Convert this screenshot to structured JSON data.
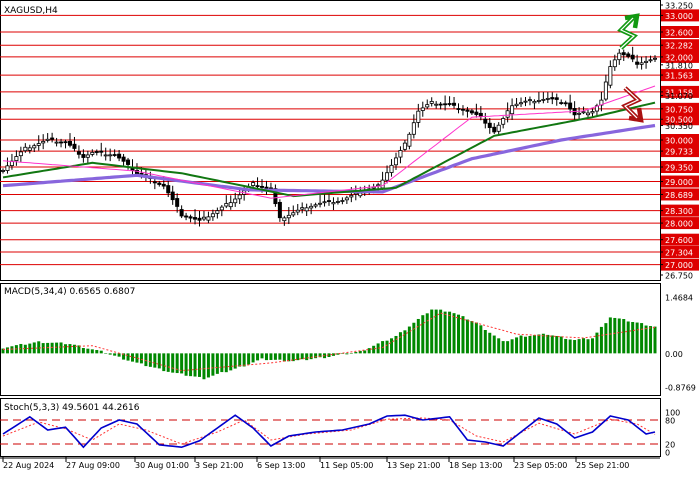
{
  "window": {
    "title": "XAGUSD,H4"
  },
  "colors": {
    "bull": "#ffffff",
    "bear": "#000000",
    "frame": "#000000",
    "hline": "#dd0000",
    "label_bg": "#dd0000",
    "label_fg": "#ffffff",
    "ma_fast": "#ff33cc",
    "ma_mid": "#117711",
    "ma_slow": "#8866dd",
    "macd_hist": "#008800",
    "macd_signal": "#ff3333",
    "stoch_main": "#0000cc",
    "stoch_signal": "#ff3333",
    "arrow_up": "#119911",
    "arrow_down": "#aa1111"
  },
  "icons": {
    "up": "green-zigzag-up-arrow-icon",
    "down": "red-zigzag-down-arrow-icon"
  },
  "chart_data": [
    {
      "type": "candlestick",
      "title": "XAGUSD,H4",
      "ylim": [
        26.75,
        33.25
      ],
      "price_labels": [
        "33.250",
        "33.000",
        "32.600",
        "32.282",
        "32.000",
        "31.810",
        "31.563",
        "31.158",
        "31.070",
        "30.750",
        "30.500",
        "30.350",
        "30.000",
        "29.733",
        "29.350",
        "29.000",
        "28.689",
        "28.300",
        "28.000",
        "27.600",
        "27.304",
        "27.000",
        "26.750"
      ],
      "highlighted_levels": [
        33.0,
        32.6,
        32.282,
        32.0,
        31.563,
        31.158,
        30.75,
        30.5,
        30.0,
        29.733,
        29.35,
        29.0,
        28.689,
        28.3,
        28.0,
        27.6,
        27.304,
        27.0
      ],
      "x_labels": [
        "22 Aug 2024",
        "27 Aug 09:00",
        "30 Aug 01:00",
        "3 Sep 21:00",
        "6 Sep 13:00",
        "11 Sep 05:00",
        "13 Sep 21:00",
        "18 Sep 13:00",
        "23 Sep 05:00",
        "25 Sep 21:00"
      ],
      "key_points": [
        [
          0,
          29.3
        ],
        [
          5,
          29.8
        ],
        [
          10,
          30.0
        ],
        [
          14,
          29.95
        ],
        [
          18,
          29.6
        ],
        [
          20,
          29.7
        ],
        [
          25,
          29.65
        ],
        [
          30,
          29.2
        ],
        [
          36,
          28.9
        ],
        [
          40,
          28.2
        ],
        [
          44,
          28.05
        ],
        [
          48,
          28.3
        ],
        [
          52,
          28.6
        ],
        [
          56,
          28.95
        ],
        [
          60,
          28.8
        ],
        [
          62,
          28.1
        ],
        [
          64,
          28.2
        ],
        [
          68,
          28.4
        ],
        [
          72,
          28.5
        ],
        [
          76,
          28.55
        ],
        [
          80,
          28.75
        ],
        [
          84,
          28.9
        ],
        [
          87,
          29.4
        ],
        [
          90,
          29.9
        ],
        [
          93,
          30.7
        ],
        [
          96,
          30.9
        ],
        [
          100,
          30.85
        ],
        [
          104,
          30.7
        ],
        [
          107,
          30.55
        ],
        [
          110,
          30.2
        ],
        [
          112,
          30.5
        ],
        [
          114,
          30.85
        ],
        [
          118,
          30.95
        ],
        [
          122,
          31.0
        ],
        [
          126,
          30.9
        ],
        [
          128,
          30.6
        ],
        [
          130,
          30.65
        ],
        [
          132,
          30.7
        ],
        [
          134,
          30.95
        ],
        [
          136,
          31.8
        ],
        [
          138,
          32.1
        ],
        [
          140,
          32.0
        ],
        [
          142,
          31.85
        ],
        [
          144,
          31.9
        ],
        [
          146,
          31.95
        ]
      ],
      "series": [
        {
          "values": [
            [
              0,
              29.5
            ],
            [
              30,
              29.25
            ],
            [
              60,
              28.6
            ],
            [
              85,
              28.9
            ],
            [
              105,
              30.55
            ],
            [
              130,
              30.7
            ],
            [
              146,
              31.3
            ]
          ]
        },
        {
          "values": [
            [
              0,
              29.1
            ],
            [
              20,
              29.45
            ],
            [
              40,
              29.2
            ],
            [
              65,
              28.65
            ],
            [
              88,
              28.85
            ],
            [
              110,
              30.1
            ],
            [
              132,
              30.55
            ],
            [
              146,
              30.9
            ]
          ]
        },
        {
          "values": [
            [
              0,
              28.9
            ],
            [
              30,
              29.15
            ],
            [
              55,
              28.8
            ],
            [
              85,
              28.75
            ],
            [
              105,
              29.55
            ],
            [
              125,
              30.0
            ],
            [
              146,
              30.35
            ]
          ]
        }
      ]
    },
    {
      "type": "bar",
      "title": "MACD(5,34,4) 0.6565 0.6807",
      "ylim": [
        -0.8769,
        1.4684
      ],
      "tick_labels": [
        "1.4684",
        "0.00",
        "-0.8769"
      ],
      "key_points": [
        [
          0,
          0.15
        ],
        [
          8,
          0.3
        ],
        [
          15,
          0.25
        ],
        [
          22,
          0.05
        ],
        [
          30,
          -0.25
        ],
        [
          38,
          -0.5
        ],
        [
          45,
          -0.65
        ],
        [
          52,
          -0.4
        ],
        [
          58,
          -0.15
        ],
        [
          65,
          -0.2
        ],
        [
          72,
          -0.1
        ],
        [
          80,
          0.05
        ],
        [
          88,
          0.45
        ],
        [
          96,
          1.15
        ],
        [
          100,
          1.1
        ],
        [
          106,
          0.8
        ],
        [
          112,
          0.3
        ],
        [
          116,
          0.45
        ],
        [
          122,
          0.5
        ],
        [
          128,
          0.35
        ],
        [
          132,
          0.4
        ],
        [
          136,
          0.95
        ],
        [
          140,
          0.85
        ],
        [
          146,
          0.7
        ]
      ],
      "series": [
        {
          "values": [
            [
              0,
              0.1
            ],
            [
              20,
              0.2
            ],
            [
              40,
              -0.45
            ],
            [
              60,
              -0.25
            ],
            [
              85,
              0.15
            ],
            [
              98,
              1.05
            ],
            [
              115,
              0.5
            ],
            [
              130,
              0.4
            ],
            [
              146,
              0.68
            ]
          ]
        }
      ]
    },
    {
      "type": "line",
      "title": "Stoch(5,3,3) 49.5601 44.2616",
      "ylim": [
        0,
        100
      ],
      "tick_labels": [
        "100",
        "80",
        "20",
        "0"
      ],
      "levels": [
        80,
        20
      ],
      "series": [
        {
          "values": [
            [
              0,
              45
            ],
            [
              6,
              88
            ],
            [
              10,
              55
            ],
            [
              14,
              62
            ],
            [
              18,
              12
            ],
            [
              22,
              60
            ],
            [
              26,
              80
            ],
            [
              30,
              70
            ],
            [
              35,
              18
            ],
            [
              40,
              12
            ],
            [
              44,
              28
            ],
            [
              48,
              60
            ],
            [
              52,
              92
            ],
            [
              56,
              60
            ],
            [
              60,
              15
            ],
            [
              64,
              40
            ],
            [
              70,
              50
            ],
            [
              76,
              55
            ],
            [
              82,
              70
            ],
            [
              86,
              90
            ],
            [
              90,
              92
            ],
            [
              94,
              80
            ],
            [
              100,
              88
            ],
            [
              104,
              30
            ],
            [
              108,
              25
            ],
            [
              112,
              15
            ],
            [
              116,
              50
            ],
            [
              120,
              85
            ],
            [
              124,
              70
            ],
            [
              128,
              35
            ],
            [
              132,
              50
            ],
            [
              136,
              90
            ],
            [
              140,
              80
            ],
            [
              144,
              45
            ],
            [
              146,
              50
            ]
          ]
        },
        {
          "values": [
            [
              0,
              40
            ],
            [
              8,
              75
            ],
            [
              14,
              58
            ],
            [
              20,
              30
            ],
            [
              26,
              70
            ],
            [
              32,
              55
            ],
            [
              40,
              20
            ],
            [
              48,
              50
            ],
            [
              54,
              80
            ],
            [
              60,
              30
            ],
            [
              68,
              45
            ],
            [
              78,
              55
            ],
            [
              86,
              82
            ],
            [
              94,
              85
            ],
            [
              100,
              80
            ],
            [
              106,
              40
            ],
            [
              112,
              25
            ],
            [
              120,
              72
            ],
            [
              128,
              45
            ],
            [
              136,
              82
            ],
            [
              142,
              70
            ],
            [
              146,
              44
            ]
          ]
        }
      ]
    }
  ]
}
